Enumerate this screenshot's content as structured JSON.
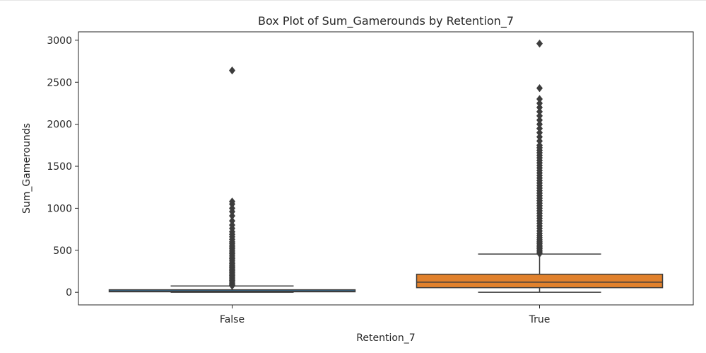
{
  "chart_data": {
    "type": "box",
    "title": "Box Plot of Sum_Gamerounds by Retention_7",
    "xlabel": "Retention_7",
    "ylabel": "Sum_Gamerounds",
    "ylim": [
      -150,
      3100
    ],
    "yticks": [
      0,
      500,
      1000,
      1500,
      2000,
      2500,
      3000
    ],
    "grid": false,
    "categories": [
      "False",
      "True"
    ],
    "boxes": [
      {
        "category": "False",
        "color": "#3274a1",
        "whisker_low": 0,
        "q1": 6,
        "median": 12,
        "q3": 30,
        "whisker_high": 75,
        "outliers": [
          78,
          85,
          95,
          110,
          125,
          140,
          155,
          170,
          185,
          200,
          215,
          230,
          245,
          260,
          275,
          290,
          305,
          320,
          340,
          360,
          380,
          400,
          420,
          440,
          460,
          480,
          500,
          520,
          540,
          560,
          580,
          600,
          630,
          660,
          690,
          720,
          760,
          800,
          850,
          910,
          960,
          1000,
          1050,
          1080,
          2640
        ]
      },
      {
        "category": "True",
        "color": "#e1812c",
        "whisker_low": 0,
        "q1": 55,
        "median": 120,
        "q3": 215,
        "whisker_high": 455,
        "outliers": [
          460,
          480,
          500,
          520,
          540,
          560,
          580,
          600,
          625,
          650,
          675,
          700,
          730,
          760,
          790,
          820,
          850,
          880,
          910,
          940,
          970,
          1000,
          1030,
          1060,
          1090,
          1120,
          1150,
          1180,
          1210,
          1240,
          1270,
          1300,
          1330,
          1360,
          1390,
          1420,
          1450,
          1480,
          1510,
          1540,
          1570,
          1600,
          1630,
          1660,
          1690,
          1720,
          1750,
          1800,
          1850,
          1900,
          1950,
          2000,
          2050,
          2100,
          2150,
          2200,
          2250,
          2300,
          2430,
          2960
        ]
      }
    ]
  }
}
